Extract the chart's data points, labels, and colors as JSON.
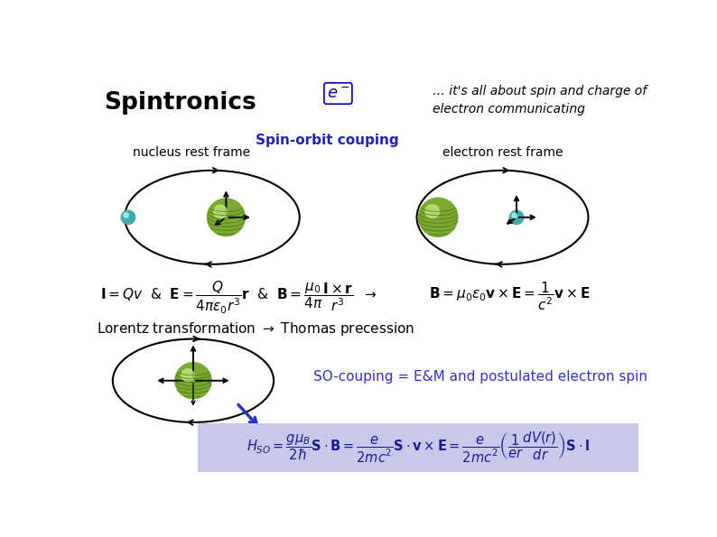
{
  "title": "Spintronics",
  "subtitle": "… it's all about spin and charge of\nelectron communicating",
  "spin_orbit_label": "Spin-orbit couping",
  "nucleus_frame_label": "nucleus rest frame",
  "electron_frame_label": "electron rest frame",
  "lorentz_label": "Lorentz transformation $\\rightarrow$ Thomas precession",
  "so_coupling_label": "SO-couping = E&M and postulated electron spin",
  "eq1": "$\\mathbf{I} = Qv$  &  $\\mathbf{E} = \\dfrac{Q}{4\\pi\\varepsilon_0 r^3}\\mathbf{r}$  &  $\\mathbf{B} = \\dfrac{\\mu_0}{4\\pi}\\dfrac{\\mathbf{I}\\times\\mathbf{r}}{r^3}$  $\\rightarrow$",
  "eq2": "$\\mathbf{B} = \\mu_0\\varepsilon_0 \\mathbf{v}\\times\\mathbf{E} = \\dfrac{1}{c^2}\\mathbf{v}\\times\\mathbf{E}$",
  "eq3": "$H_{SO} = \\dfrac{g\\mu_B}{2\\hbar}\\mathbf{S}\\cdot\\mathbf{B} = \\dfrac{e}{2mc^2}\\mathbf{S}\\cdot\\mathbf{v}\\times\\mathbf{E} = \\dfrac{e}{2mc^2}\\left(\\dfrac{1}{er}\\dfrac{dV(r)}{dr}\\right)\\mathbf{S}\\cdot\\mathbf{l}$",
  "bg_color": "#ffffff",
  "eq3_bg": "#c8c8e8",
  "title_color": "#000000",
  "spin_orbit_color": "#2222bb",
  "so_coupling_color": "#3333cc",
  "blue_arrow_color": "#2233cc",
  "nucleus_ball_color": "#7aaa30",
  "nucleus_shine_color": "#c8ee88",
  "nucleus_stripe_color": "#3a6612",
  "electron_ball_color": "#44aaaa",
  "electron_shine_color": "#aaffff",
  "eq_text_color": "#1a1a99"
}
